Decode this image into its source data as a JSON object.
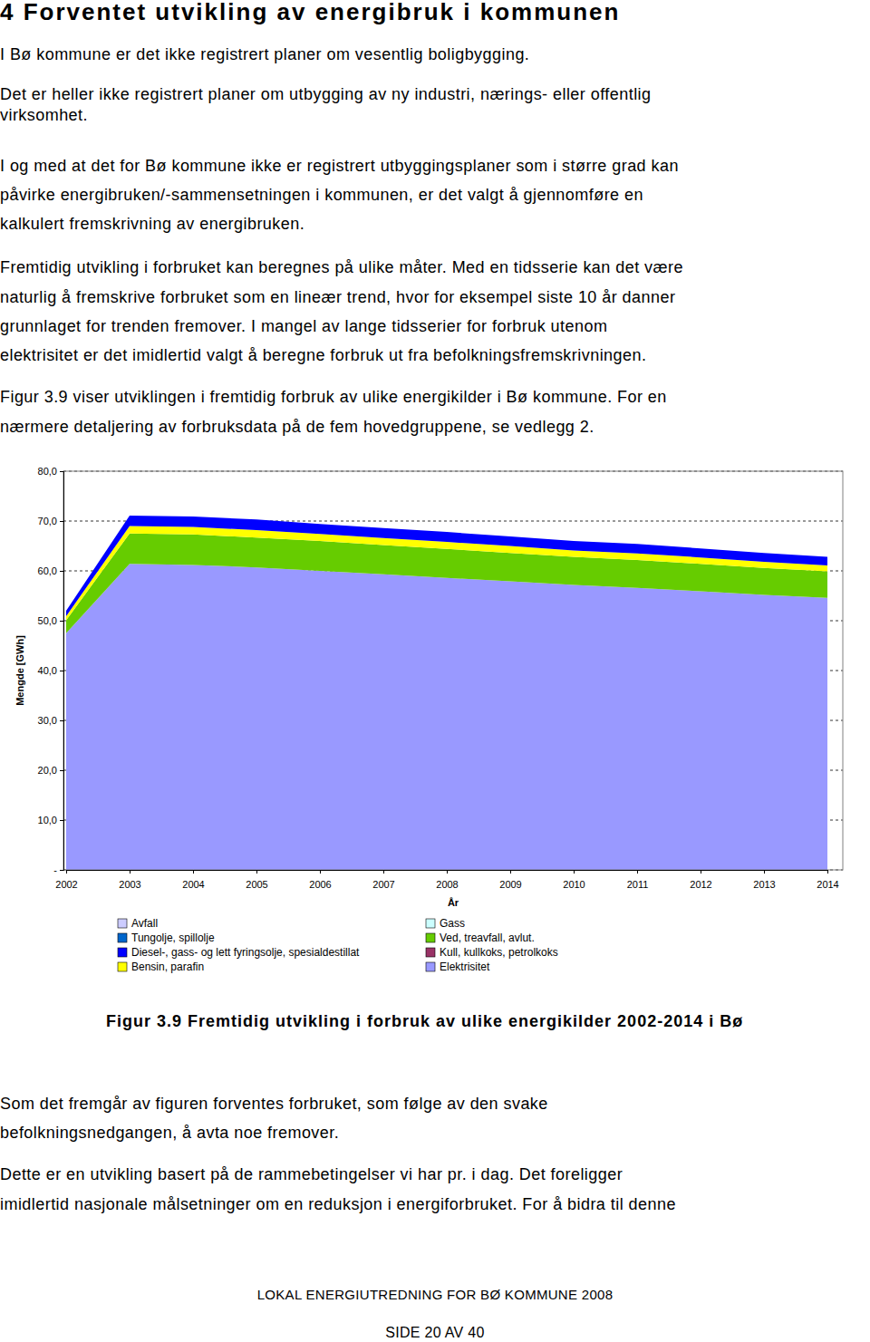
{
  "heading": "4 Forventet utvikling av energibruk i kommunen",
  "paragraphs_before": [
    [
      "I Bø kommune er det ikke registrert planer om vesentlig boligbygging."
    ],
    [
      "Det er heller ikke registrert planer om utbygging av ny industri, nærings- eller offentlig",
      "virksomhet."
    ],
    [
      "I og med at det for Bø kommune ikke er registrert utbyggingsplaner som i større grad kan",
      "påvirke energibruken/-sammensetningen i kommunen, er det valgt å gjennomføre en",
      "kalkulert fremskrivning av energibruken."
    ],
    [
      "Fremtidig utvikling i forbruket kan beregnes på ulike måter. Med en tidsserie kan det være",
      "naturlig å fremskrive forbruket som en lineær trend, hvor for eksempel siste 10 år danner",
      "grunnlaget for trenden fremover. I mangel av lange tidsserier for forbruk utenom",
      "elektrisitet er det imidlertid valgt å beregne forbruk ut fra befolkningsfremskrivningen."
    ],
    [
      "Figur 3.9 viser utviklingen i fremtidig forbruk av ulike energikilder i Bø kommune. For en",
      "nærmere detaljering av forbruksdata på de fem hovedgruppene, se vedlegg 2."
    ]
  ],
  "chart_data": {
    "type": "area",
    "stacked": true,
    "x_label": "År",
    "y_label": "Mengde [GWh]",
    "categories": [
      "2002",
      "2003",
      "2004",
      "2005",
      "2006",
      "2007",
      "2008",
      "2009",
      "2010",
      "2011",
      "2012",
      "2013",
      "2014"
    ],
    "ylim": [
      0,
      80
    ],
    "yticks": [
      {
        "value": 0,
        "label": "-"
      },
      {
        "value": 10,
        "label": "10,0"
      },
      {
        "value": 20,
        "label": "20,0"
      },
      {
        "value": 30,
        "label": "30,0"
      },
      {
        "value": 40,
        "label": "40,0"
      },
      {
        "value": 50,
        "label": "50,0"
      },
      {
        "value": 60,
        "label": "60,0"
      },
      {
        "value": 70,
        "label": "70,0"
      },
      {
        "value": 80,
        "label": "80,0"
      }
    ],
    "grid": true,
    "legend": "bottom",
    "series": [
      {
        "name": "Avfall",
        "color": "#ccccff",
        "values": [
          0,
          0,
          0,
          0,
          0,
          0,
          0,
          0,
          0,
          0,
          0,
          0,
          0
        ]
      },
      {
        "name": "Tungolje, spillolje",
        "color": "#0066cc",
        "values": [
          0,
          0,
          0,
          0,
          0,
          0,
          0,
          0,
          0,
          0,
          0,
          0,
          0
        ]
      },
      {
        "name": "Diesel-, gass- og lett fyringsolje, spesialdestillat",
        "color": "#0000ff",
        "values": [
          1.1,
          2.1,
          2.1,
          2.1,
          2.0,
          2.0,
          2.0,
          1.9,
          1.9,
          1.9,
          1.8,
          1.8,
          1.7
        ]
      },
      {
        "name": "Bensin, parafin",
        "color": "#ffff00",
        "values": [
          0.8,
          1.5,
          1.5,
          1.5,
          1.4,
          1.4,
          1.4,
          1.4,
          1.3,
          1.3,
          1.3,
          1.2,
          1.2
        ]
      },
      {
        "name": "Gass",
        "color": "#ccffff",
        "values": [
          0,
          0,
          0,
          0,
          0,
          0,
          0,
          0,
          0,
          0,
          0,
          0,
          0
        ]
      },
      {
        "name": "Ved, treavfall, avlut.",
        "color": "#66cc00",
        "values": [
          2.6,
          6.1,
          6.1,
          6.0,
          6.0,
          5.9,
          5.8,
          5.7,
          5.6,
          5.6,
          5.5,
          5.4,
          5.3
        ]
      },
      {
        "name": "Kull, kullkoks, petrolkoks",
        "color": "#993366",
        "values": [
          0,
          0,
          0,
          0,
          0,
          0,
          0,
          0,
          0,
          0,
          0,
          0,
          0
        ]
      },
      {
        "name": "Elektrisitet",
        "color": "#9999ff",
        "values": [
          47.5,
          61.4,
          61.2,
          60.7,
          60.0,
          59.3,
          58.6,
          57.9,
          57.2,
          56.6,
          55.9,
          55.2,
          54.6
        ]
      }
    ]
  },
  "caption": "Figur 3.9 Fremtidig utvikling i forbruk av ulike energikilder 2002-2014 i Bø",
  "paragraphs_after": [
    [
      "Som det fremgår av figuren forventes forbruket, som følge av den svake",
      "befolkningsnedgangen, å avta noe fremover."
    ],
    [
      "Dette er en utvikling basert på de rammebetingelser vi har pr. i dag. Det foreligger",
      "imidlertid nasjonale målsetninger om en reduksjon i energiforbruket. For å bidra til denne"
    ]
  ],
  "footer": {
    "report": "LOKAL ENERGIUTREDNING FOR BØ KOMMUNE 2008",
    "page": "SIDE 20 AV 40"
  }
}
